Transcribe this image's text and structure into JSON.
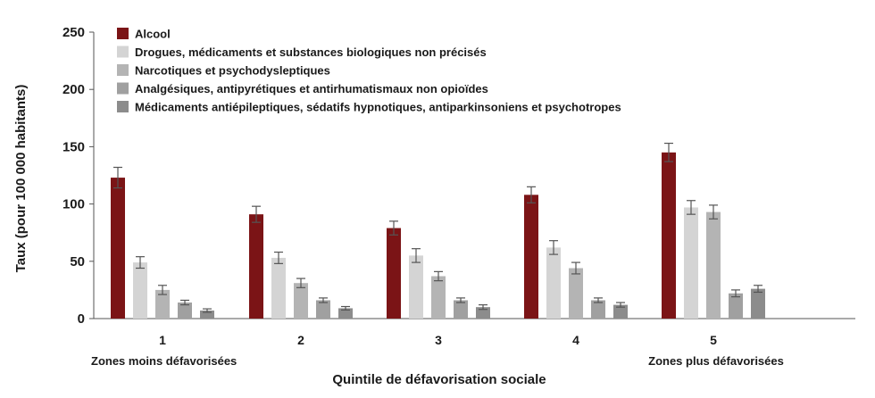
{
  "chart_data": {
    "type": "bar",
    "ylabel": "Taux (pour 100 000 habitants)",
    "xlabel": "Quintile de défavorisation sociale",
    "ylim": [
      0,
      250
    ],
    "yticks": [
      0,
      50,
      100,
      150,
      200,
      250
    ],
    "categories": [
      "1",
      "2",
      "3",
      "4",
      "5"
    ],
    "category_notes": {
      "first": "Zones moins défavorisées",
      "last": "Zones plus défavorisées"
    },
    "legend_position": "top-left",
    "grid": false,
    "series": [
      {
        "name": "Alcool",
        "color": "#7b1416",
        "values": [
          123,
          91,
          79,
          108,
          145
        ],
        "errors": [
          9,
          7,
          6,
          7,
          8
        ]
      },
      {
        "name": "Drogues, médicaments et substances biologiques non précisés",
        "color": "#d4d4d4",
        "values": [
          49,
          53,
          55,
          62,
          97
        ],
        "errors": [
          5,
          5,
          6,
          6,
          6
        ]
      },
      {
        "name": "Narcotiques et psychodysleptiques",
        "color": "#b4b4b4",
        "values": [
          25,
          31,
          37,
          44,
          93
        ],
        "errors": [
          4,
          4,
          4,
          5,
          6
        ]
      },
      {
        "name": "Analgésiques, antipyrétiques et antirhumatismaux non opioïdes",
        "color": "#a0a0a0",
        "values": [
          14,
          16,
          16,
          16,
          22
        ],
        "errors": [
          2,
          2,
          2,
          2,
          3
        ]
      },
      {
        "name": "Médicaments antiépileptiques, sédatifs hypnotiques, antiparkinsoniens et psychotropes",
        "color": "#8c8c8c",
        "values": [
          7,
          9,
          10,
          12,
          26
        ],
        "errors": [
          1.5,
          1.5,
          2,
          2,
          3
        ]
      }
    ]
  }
}
